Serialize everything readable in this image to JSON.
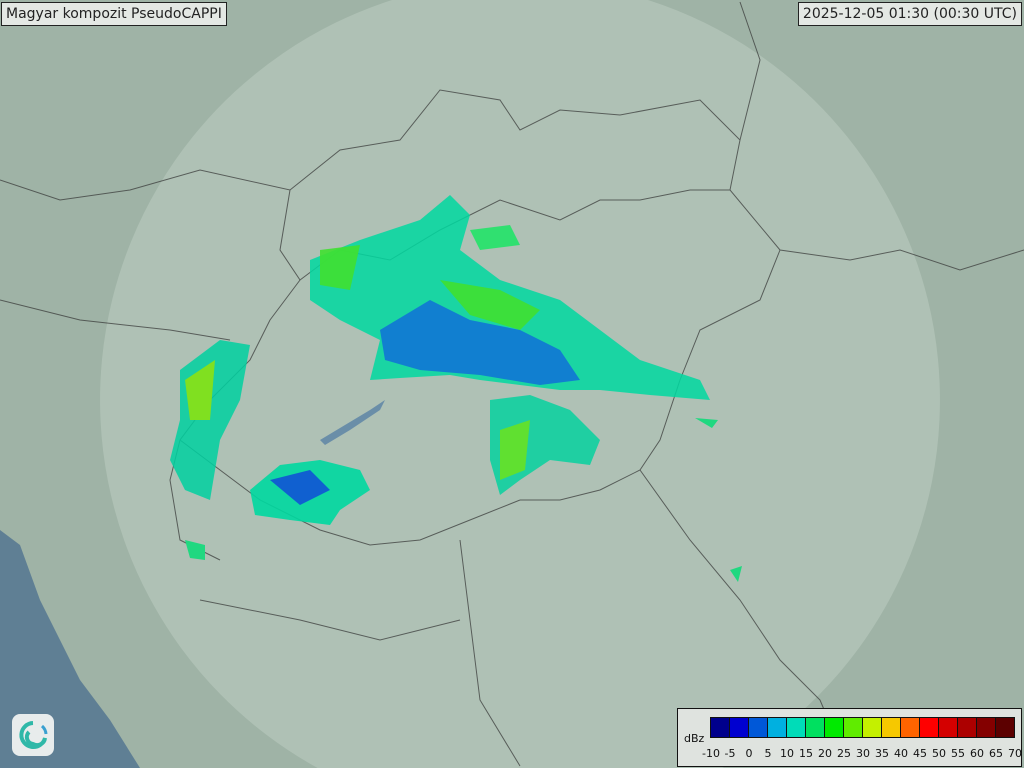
{
  "header": {
    "title": "Magyar kompozit  PseudoCAPPI",
    "timestamp": "2025-12-05 01:30 (00:30 UTC)"
  },
  "logo": {
    "icon": "swirl-logo-icon"
  },
  "legend": {
    "unit": "dBz",
    "ticks": [
      "-10",
      "-5",
      "0",
      "5",
      "10",
      "15",
      "20",
      "25",
      "30",
      "35",
      "40",
      "45",
      "50",
      "55",
      "60",
      "65",
      "70"
    ],
    "colors": [
      "#00008c",
      "#0000d0",
      "#0058d8",
      "#00b0e0",
      "#00dcb8",
      "#00e060",
      "#00ea00",
      "#60ec00",
      "#c4f000",
      "#f6c800",
      "#ff6400",
      "#ff0000",
      "#d40000",
      "#ac0000",
      "#840000",
      "#5c0000"
    ]
  },
  "map": {
    "land_color": "#9fb3a6",
    "sea_color": "#5f7f94",
    "radar_coverage_color": "#c4d2c8"
  }
}
